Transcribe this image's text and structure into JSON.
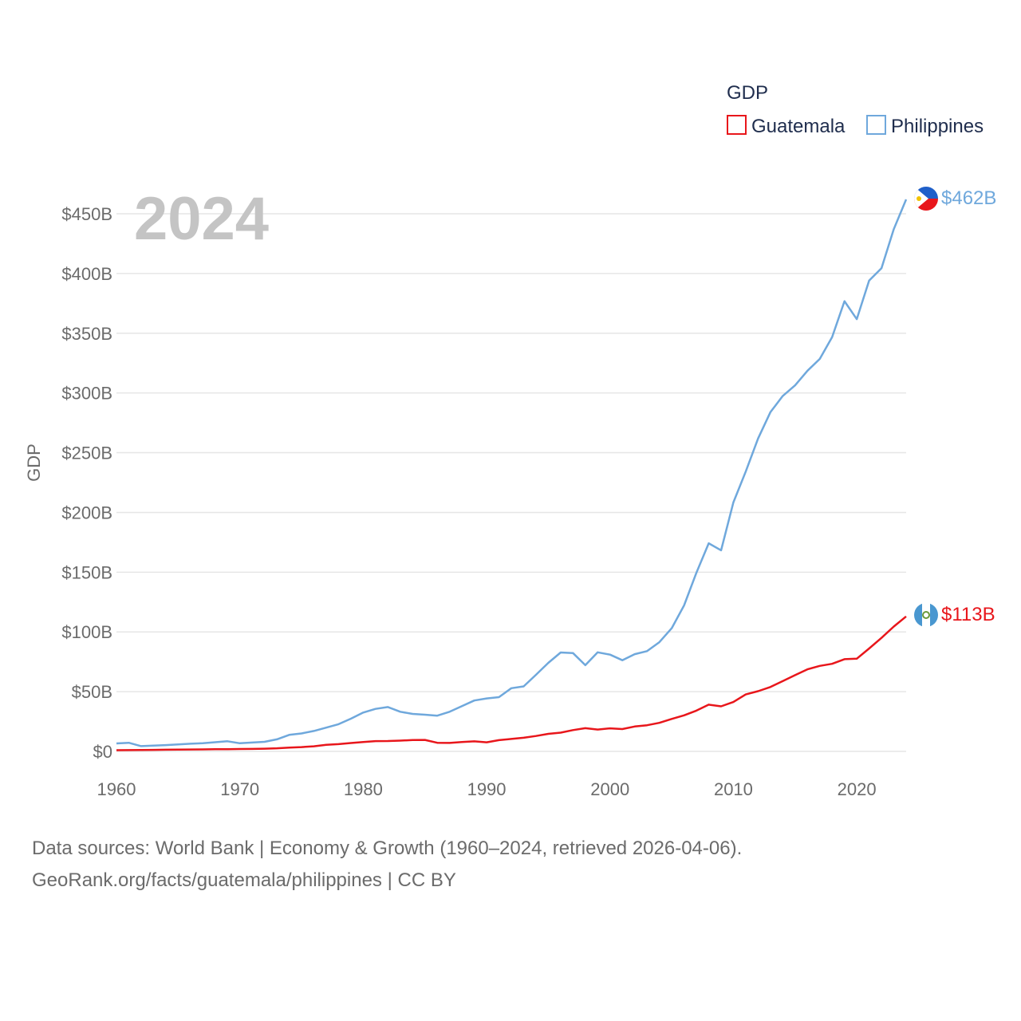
{
  "chart_data": {
    "type": "line",
    "legend_title": "GDP",
    "ylabel": "GDP",
    "year_label": "2024",
    "xlim": [
      1960,
      2024
    ],
    "ylim": [
      0,
      450
    ],
    "x_ticks": [
      "1960",
      "1970",
      "1980",
      "1990",
      "2000",
      "2010",
      "2020"
    ],
    "y_ticks": [
      "$0",
      "$50B",
      "$100B",
      "$150B",
      "$200B",
      "$250B",
      "$300B",
      "$350B",
      "$400B",
      "$450B"
    ],
    "x": [
      1960,
      1961,
      1962,
      1963,
      1964,
      1965,
      1966,
      1967,
      1968,
      1969,
      1970,
      1971,
      1972,
      1973,
      1974,
      1975,
      1976,
      1977,
      1978,
      1979,
      1980,
      1981,
      1982,
      1983,
      1984,
      1985,
      1986,
      1987,
      1988,
      1989,
      1990,
      1991,
      1992,
      1993,
      1994,
      1995,
      1996,
      1997,
      1998,
      1999,
      2000,
      2001,
      2002,
      2003,
      2004,
      2005,
      2006,
      2007,
      2008,
      2009,
      2010,
      2011,
      2012,
      2013,
      2014,
      2015,
      2016,
      2017,
      2018,
      2019,
      2020,
      2021,
      2022,
      2023,
      2024
    ],
    "series": [
      {
        "name": "Guatemala",
        "color": "#e8161b",
        "end_label": "$113B",
        "flag": "guatemala-flag",
        "values": [
          1.0,
          1.1,
          1.2,
          1.3,
          1.4,
          1.5,
          1.6,
          1.7,
          1.8,
          1.9,
          2.0,
          2.1,
          2.3,
          2.6,
          3.2,
          3.6,
          4.3,
          5.5,
          6.1,
          7.0,
          7.9,
          8.6,
          8.7,
          9.0,
          9.5,
          9.6,
          7.2,
          7.1,
          7.8,
          8.4,
          7.6,
          9.4,
          10.4,
          11.4,
          12.9,
          14.7,
          15.7,
          17.8,
          19.4,
          18.3,
          19.3,
          18.7,
          20.8,
          21.9,
          23.9,
          27.2,
          30.2,
          34.1,
          39.1,
          37.7,
          41.3,
          47.7,
          50.4,
          53.9,
          58.8,
          63.8,
          68.7,
          71.6,
          73.3,
          77.2,
          77.6,
          86.1,
          95.0,
          104.5,
          113.0
        ]
      },
      {
        "name": "Philippines",
        "color": "#6fa8dc",
        "end_label": "$462B",
        "flag": "philippines-flag",
        "values": [
          6.7,
          7.2,
          4.4,
          4.9,
          5.3,
          5.9,
          6.4,
          6.9,
          7.7,
          8.5,
          6.8,
          7.4,
          8.0,
          10.1,
          13.8,
          15.0,
          17.1,
          19.9,
          22.8,
          27.4,
          32.5,
          35.6,
          37.1,
          33.2,
          31.4,
          30.7,
          29.9,
          33.2,
          37.9,
          42.6,
          44.3,
          45.4,
          52.9,
          54.4,
          64.1,
          74.1,
          82.8,
          82.3,
          72.2,
          82.9,
          81.0,
          76.3,
          81.4,
          83.9,
          91.4,
          103.1,
          122.2,
          149.4,
          174.2,
          168.3,
          208.4,
          234.2,
          261.9,
          283.9,
          297.5,
          306.4,
          318.6,
          328.5,
          346.8,
          376.8,
          361.8,
          394.1,
          404.4,
          437.1,
          462.0
        ]
      }
    ]
  },
  "source": {
    "line1": "Data sources: World Bank | Economy & Growth (1960–2024, retrieved 2026-04-06).",
    "line2": "GeoRank.org/facts/guatemala/philippines | CC BY"
  }
}
